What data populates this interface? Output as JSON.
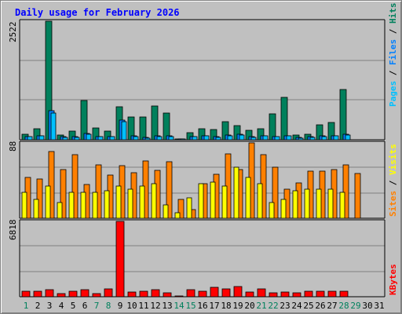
{
  "chart_data": {
    "title": "Daily usage for February 2026",
    "type": "bar",
    "days": [
      "1",
      "2",
      "3",
      "4",
      "5",
      "6",
      "7",
      "8",
      "9",
      "10",
      "11",
      "12",
      "13",
      "14",
      "15",
      "16",
      "17",
      "18",
      "19",
      "20",
      "21",
      "22",
      "23",
      "24",
      "25",
      "26",
      "27",
      "28",
      "29",
      "30",
      "31"
    ],
    "weekend_days": [
      "1",
      "7",
      "8",
      "14",
      "15",
      "21",
      "22",
      "28",
      "29"
    ],
    "panels": {
      "hits": {
        "max_label": "2522",
        "max": 2522,
        "legend": [
          "Pages",
          "Files",
          "Hits"
        ],
        "series": [
          {
            "name": "Hits",
            "color": "#00805c",
            "values": [
              120,
              240,
              2522,
              100,
              180,
              830,
              250,
              190,
              700,
              490,
              490,
              710,
              570,
              20,
              150,
              230,
              220,
              390,
              300,
              200,
              230,
              550,
              900,
              100,
              120,
              320,
              360,
              1070,
              0,
              0,
              0
            ]
          },
          {
            "name": "Files",
            "color": "#0080ff",
            "values": [
              70,
              90,
              620,
              60,
              60,
              140,
              70,
              70,
              420,
              80,
              50,
              80,
              80,
              10,
              70,
              90,
              60,
              100,
              120,
              60,
              90,
              70,
              90,
              50,
              60,
              80,
              90,
              110,
              0,
              0,
              0
            ]
          },
          {
            "name": "Pages",
            "color": "#00c0ff",
            "values": [
              60,
              80,
              570,
              50,
              50,
              120,
              60,
              60,
              380,
              70,
              40,
              70,
              70,
              10,
              60,
              80,
              50,
              90,
              100,
              50,
              80,
              60,
              80,
              40,
              50,
              70,
              80,
              100,
              0,
              0,
              0
            ]
          }
        ]
      },
      "visits": {
        "max_label": "88",
        "max": 88,
        "legend": [
          "Sites",
          "Visits"
        ],
        "series": [
          {
            "name": "Visits",
            "color": "#ffff00",
            "values": [
              30,
              22,
              38,
              18,
              30,
              30,
              30,
              32,
              38,
              34,
              38,
              40,
              16,
              6,
              24,
              40,
              42,
              38,
              60,
              48,
              40,
              18,
              22,
              32,
              34,
              34,
              34,
              30,
              0,
              0,
              0
            ]
          },
          {
            "name": "Sites",
            "color": "#ff8000",
            "values": [
              48,
              46,
              78,
              57,
              74,
              39,
              62,
              50,
              61,
              53,
              67,
              56,
              66,
              22,
              10,
              40,
              51,
              75,
              57,
              88,
              74,
              60,
              34,
              41,
              55,
              55,
              57,
              62,
              52,
              0,
              0
            ]
          }
        ]
      },
      "kbytes": {
        "max_label": "6818",
        "max": 6818,
        "legend": [
          "KBytes"
        ],
        "series": [
          {
            "name": "KBytes",
            "color": "#ff0000",
            "values": [
              480,
              520,
              670,
              310,
              470,
              610,
              280,
              680,
              6818,
              400,
              520,
              620,
              340,
              20,
              660,
              520,
              820,
              690,
              950,
              420,
              690,
              390,
              400,
              370,
              480,
              480,
              530,
              480,
              0,
              0,
              0
            ]
          }
        ]
      }
    },
    "colors": {
      "title": "#0000ff",
      "plot_bg": "#c0c0c0",
      "grid": "#808080",
      "weekday_label": "#000000",
      "weekend_label": "#00805c"
    }
  }
}
